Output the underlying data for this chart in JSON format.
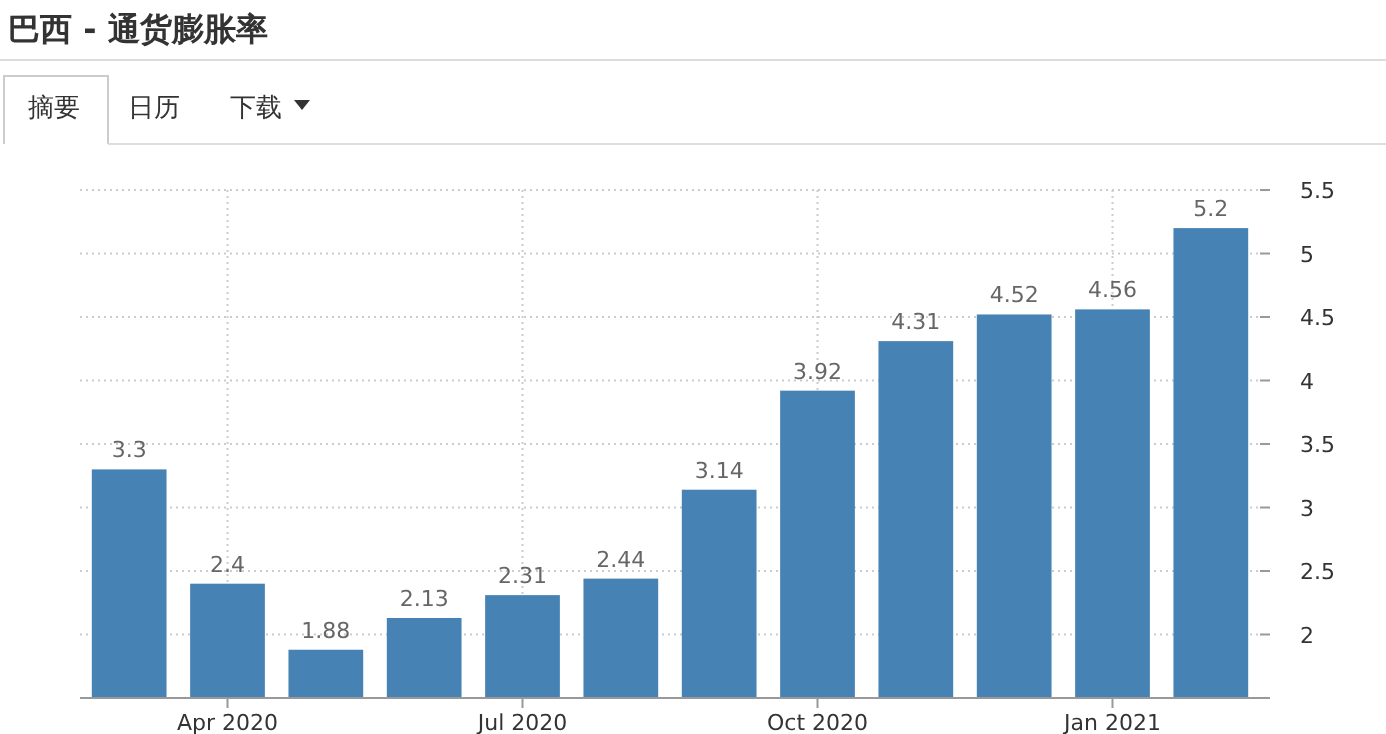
{
  "chart_data": {
    "type": "bar",
    "title": "巴西 - 通货膨胀率",
    "annotations": [
      "摘要",
      "日历",
      "下载"
    ],
    "categories": [
      null,
      "Apr 2020",
      null,
      null,
      "Jul 2020",
      null,
      null,
      "Oct 2020",
      null,
      null,
      "Jan 2021",
      null
    ],
    "values": [
      3.3,
      2.4,
      1.88,
      2.13,
      2.31,
      2.44,
      3.14,
      3.92,
      4.31,
      4.52,
      4.56,
      5.2
    ],
    "color": "#4682b4",
    "ylim": [
      1.5,
      5.5
    ],
    "yticks": [
      2,
      2.5,
      3,
      3.5,
      4,
      4.5,
      5,
      5.5
    ],
    "grid": true,
    "data_labels": true
  }
}
